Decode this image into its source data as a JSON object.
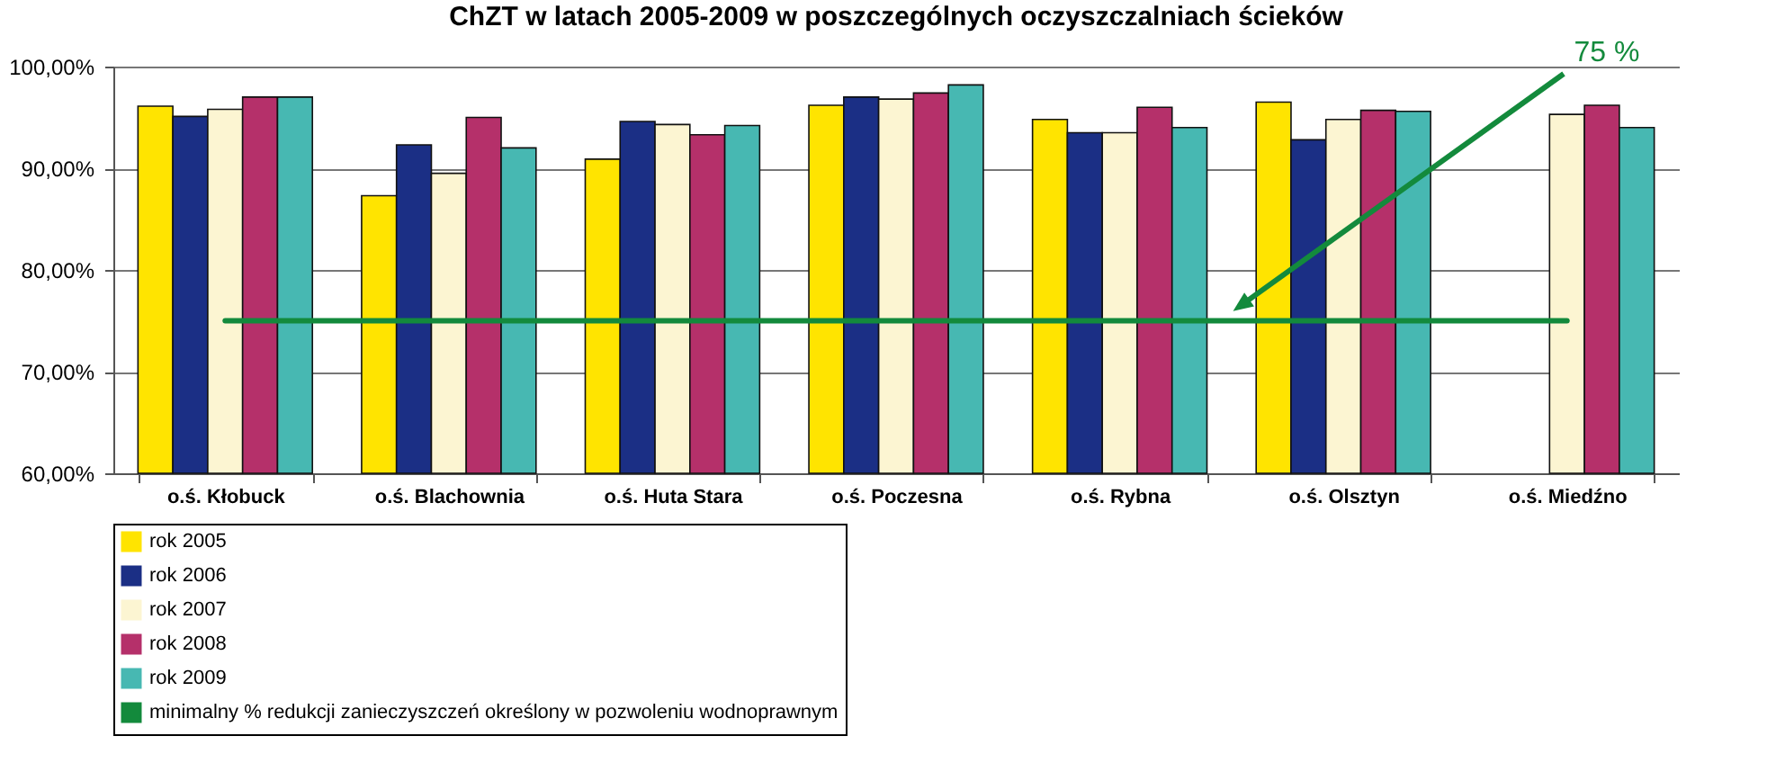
{
  "chart_data": {
    "type": "bar",
    "title": "ChZT w latach 2005-2009 w poszczególnych oczyszczalniach ścieków",
    "categories": [
      "o.ś. Kłobuck",
      "o.ś. Blachownia",
      "o.ś. Huta Stara",
      "o.ś. Poczesna",
      "o.ś. Rybna",
      "o.ś. Olsztyn",
      "o.ś. Miedźno"
    ],
    "series": [
      {
        "name": "rok 2005",
        "color": "#ffe400",
        "values": [
          96.1,
          87.3,
          90.9,
          96.2,
          94.8,
          96.5,
          null
        ]
      },
      {
        "name": "rok 2006",
        "color": "#1b2f85",
        "values": [
          95.1,
          92.3,
          94.6,
          97.0,
          93.5,
          92.8,
          null
        ]
      },
      {
        "name": "rok 2007",
        "color": "#fcf5d2",
        "values": [
          95.8,
          89.5,
          94.3,
          96.8,
          93.5,
          94.8,
          95.3
        ]
      },
      {
        "name": "rok 2008",
        "color": "#b5306a",
        "values": [
          97.0,
          95.0,
          93.3,
          97.4,
          96.0,
          95.7,
          96.2
        ]
      },
      {
        "name": "rok 2009",
        "color": "#47b8b2",
        "values": [
          97.0,
          92.0,
          94.2,
          98.2,
          94.0,
          95.6,
          94.0
        ]
      },
      {
        "name": "minimalny % redukcji zanieczyszczeń określony w pozwoleniu wodnoprawnym",
        "color": "#138a3c",
        "type": "line",
        "values": [
          75,
          75,
          75,
          75,
          75,
          75,
          75
        ]
      }
    ],
    "ylim": [
      60,
      100
    ],
    "yticks": [
      {
        "value": 60,
        "label": "60,00%"
      },
      {
        "value": 70,
        "label": "70,00%"
      },
      {
        "value": 80,
        "label": "80,00%"
      },
      {
        "value": 90,
        "label": "90,00%"
      },
      {
        "value": 100,
        "label": "100,00%"
      }
    ],
    "grid": "y",
    "legend": "bottom left",
    "marker": "none",
    "annotations": [
      "75 %"
    ]
  }
}
